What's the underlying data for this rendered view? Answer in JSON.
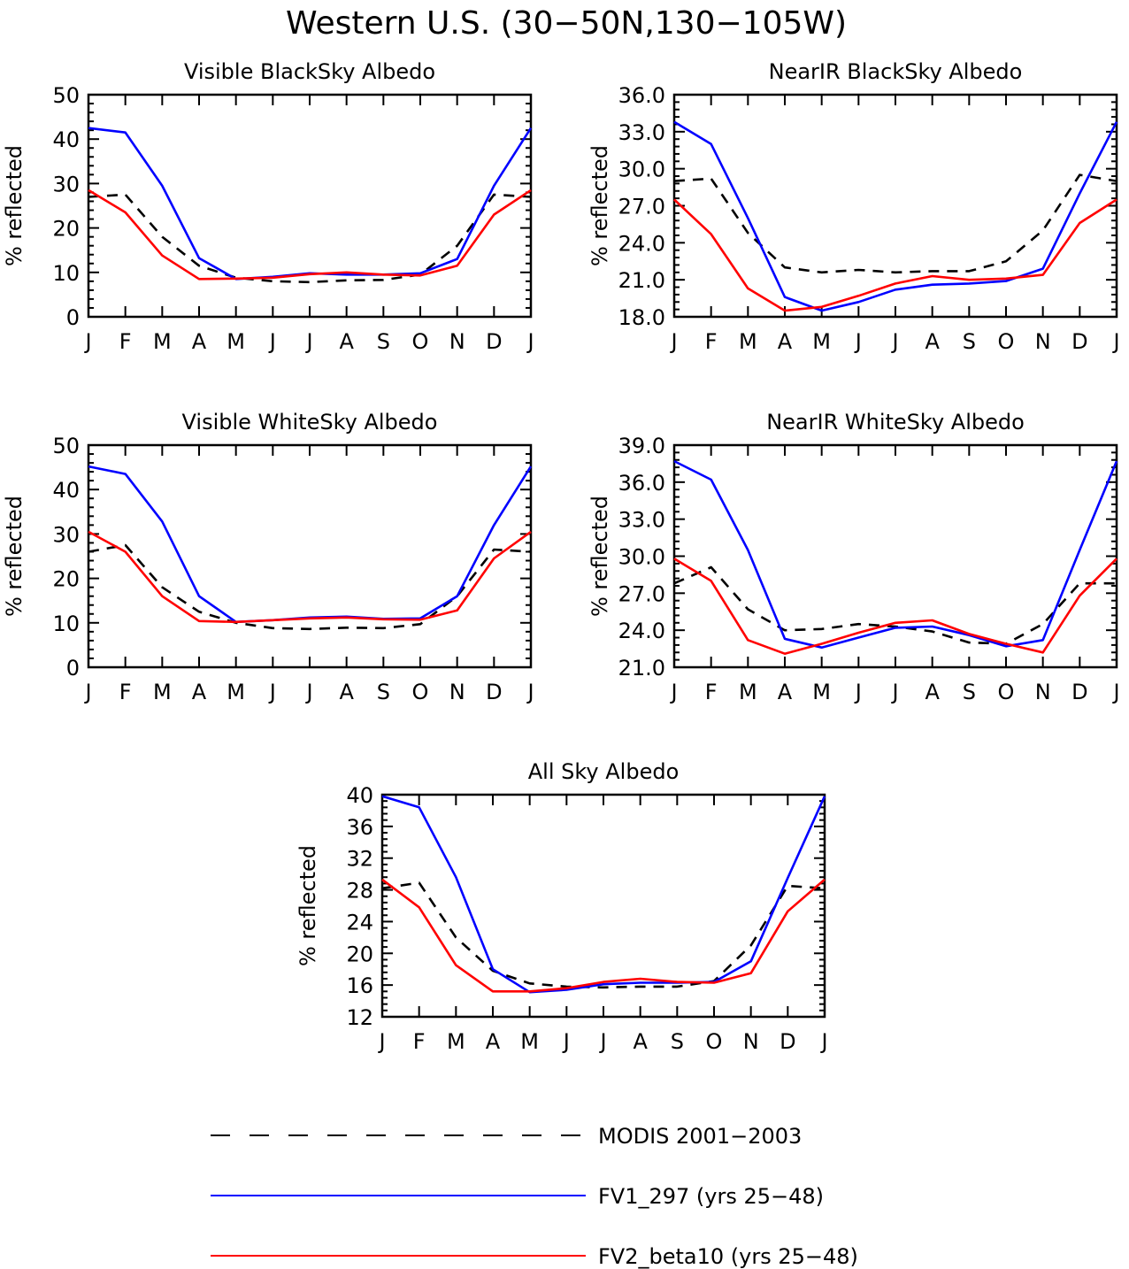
{
  "figure_title": "Western U.S. (30−50N,130−105W)",
  "month_labels": [
    "J",
    "F",
    "M",
    "A",
    "M",
    "J",
    "J",
    "A",
    "S",
    "O",
    "N",
    "D",
    "J"
  ],
  "legend": [
    {
      "label": "MODIS 2001−2003",
      "color": "#000000",
      "dash": true
    },
    {
      "label": "FV1_297 (yrs 25−48)",
      "color": "#0000ff",
      "dash": false
    },
    {
      "label": "FV2_beta10 (yrs 25−48)",
      "color": "#ff0000",
      "dash": false
    }
  ],
  "chart_data": [
    {
      "type": "line",
      "title": "Visible BlackSky Albedo",
      "ylabel": "% reflected",
      "ylim": [
        0,
        50
      ],
      "yticks": [
        "0",
        "10",
        "20",
        "30",
        "40",
        "50"
      ],
      "categories": [
        "J",
        "F",
        "M",
        "A",
        "M",
        "J",
        "J",
        "A",
        "S",
        "O",
        "N",
        "D",
        "J"
      ],
      "series": [
        {
          "name": "MODIS 2001−2003",
          "color": "#000000",
          "dash": true,
          "values": [
            27.0,
            27.5,
            18.0,
            11.5,
            8.8,
            8.0,
            7.8,
            8.2,
            8.3,
            9.5,
            16.0,
            27.5,
            27.0
          ]
        },
        {
          "name": "FV1_297 (yrs 25−48)",
          "color": "#0000ff",
          "dash": false,
          "values": [
            42.5,
            41.5,
            29.5,
            13.2,
            8.5,
            9.0,
            9.8,
            9.5,
            9.5,
            9.8,
            13.0,
            29.5,
            42.5
          ]
        },
        {
          "name": "FV2_beta10 (yrs 25−48)",
          "color": "#ff0000",
          "dash": false,
          "values": [
            28.5,
            23.5,
            13.8,
            8.5,
            8.6,
            8.8,
            9.6,
            10.0,
            9.5,
            9.3,
            11.5,
            23.0,
            28.5
          ]
        }
      ]
    },
    {
      "type": "line",
      "title": "NearIR BlackSky Albedo",
      "ylabel": "% reflected",
      "ylim": [
        18,
        36
      ],
      "yticks": [
        "18.0",
        "21.0",
        "24.0",
        "27.0",
        "30.0",
        "33.0",
        "36.0"
      ],
      "categories": [
        "J",
        "F",
        "M",
        "A",
        "M",
        "J",
        "J",
        "A",
        "S",
        "O",
        "N",
        "D",
        "J"
      ],
      "series": [
        {
          "name": "MODIS 2001−2003",
          "color": "#000000",
          "dash": true,
          "values": [
            29.0,
            29.2,
            24.8,
            22.0,
            21.6,
            21.8,
            21.6,
            21.7,
            21.7,
            22.5,
            25.0,
            29.5,
            29.0
          ]
        },
        {
          "name": "FV1_297 (yrs 25−48)",
          "color": "#0000ff",
          "dash": false,
          "values": [
            33.8,
            32.0,
            26.0,
            19.6,
            18.5,
            19.2,
            20.2,
            20.6,
            20.7,
            20.9,
            21.9,
            28.0,
            33.8
          ]
        },
        {
          "name": "FV2_beta10 (yrs 25−48)",
          "color": "#ff0000",
          "dash": false,
          "values": [
            27.5,
            24.7,
            20.3,
            18.5,
            18.8,
            19.7,
            20.7,
            21.3,
            21.0,
            21.1,
            21.4,
            25.6,
            27.5
          ]
        }
      ]
    },
    {
      "type": "line",
      "title": "Visible WhiteSky Albedo",
      "ylabel": "% reflected",
      "ylim": [
        0,
        50
      ],
      "yticks": [
        "0",
        "10",
        "20",
        "30",
        "40",
        "50"
      ],
      "categories": [
        "J",
        "F",
        "M",
        "A",
        "M",
        "J",
        "J",
        "A",
        "S",
        "O",
        "N",
        "D",
        "J"
      ],
      "series": [
        {
          "name": "MODIS 2001−2003",
          "color": "#000000",
          "dash": true,
          "values": [
            26.0,
            27.5,
            18.0,
            12.5,
            10.0,
            8.8,
            8.6,
            8.9,
            8.8,
            9.7,
            16.0,
            26.5,
            26.0
          ]
        },
        {
          "name": "FV1_297 (yrs 25−48)",
          "color": "#0000ff",
          "dash": false,
          "values": [
            45.2,
            43.5,
            32.8,
            16.0,
            10.2,
            10.6,
            11.2,
            11.4,
            10.9,
            11.0,
            16.0,
            32.0,
            45.2
          ]
        },
        {
          "name": "FV2_beta10 (yrs 25−48)",
          "color": "#ff0000",
          "dash": false,
          "values": [
            30.5,
            26.0,
            16.0,
            10.4,
            10.2,
            10.6,
            11.0,
            11.2,
            10.8,
            10.7,
            12.8,
            24.5,
            30.5
          ]
        }
      ]
    },
    {
      "type": "line",
      "title": "NearIR WhiteSky Albedo",
      "ylabel": "% reflected",
      "ylim": [
        21,
        39
      ],
      "yticks": [
        "21.0",
        "24.0",
        "27.0",
        "30.0",
        "33.0",
        "36.0",
        "39.0"
      ],
      "categories": [
        "J",
        "F",
        "M",
        "A",
        "M",
        "J",
        "J",
        "A",
        "S",
        "O",
        "N",
        "D",
        "J"
      ],
      "series": [
        {
          "name": "MODIS 2001−2003",
          "color": "#000000",
          "dash": true,
          "values": [
            27.8,
            29.1,
            25.7,
            24.0,
            24.1,
            24.5,
            24.3,
            23.9,
            23.0,
            22.9,
            24.5,
            27.8,
            27.8
          ]
        },
        {
          "name": "FV1_297 (yrs 25−48)",
          "color": "#0000ff",
          "dash": false,
          "values": [
            37.7,
            36.2,
            30.5,
            23.3,
            22.6,
            23.4,
            24.2,
            24.3,
            23.6,
            22.7,
            23.2,
            30.5,
            37.7
          ]
        },
        {
          "name": "FV2_beta10 (yrs 25−48)",
          "color": "#ff0000",
          "dash": false,
          "values": [
            29.8,
            28.0,
            23.2,
            22.1,
            22.9,
            23.8,
            24.6,
            24.8,
            23.7,
            22.9,
            22.2,
            26.8,
            29.8
          ]
        }
      ]
    },
    {
      "type": "line",
      "title": "All Sky Albedo",
      "ylabel": "% reflected",
      "ylim": [
        12,
        40
      ],
      "yticks": [
        "12",
        "16",
        "20",
        "24",
        "28",
        "32",
        "36",
        "40"
      ],
      "categories": [
        "J",
        "F",
        "M",
        "A",
        "M",
        "J",
        "J",
        "A",
        "S",
        "O",
        "N",
        "D",
        "J"
      ],
      "series": [
        {
          "name": "MODIS 2001−2003",
          "color": "#000000",
          "dash": true,
          "values": [
            28.2,
            28.9,
            22.0,
            17.8,
            16.2,
            15.8,
            15.7,
            15.8,
            15.8,
            16.5,
            21.0,
            28.5,
            28.2
          ]
        },
        {
          "name": "FV1_297 (yrs 25−48)",
          "color": "#0000ff",
          "dash": false,
          "values": [
            39.8,
            38.4,
            29.6,
            18.0,
            15.1,
            15.4,
            16.1,
            16.3,
            16.3,
            16.4,
            19.0,
            29.5,
            39.8
          ]
        },
        {
          "name": "FV2_beta10 (yrs 25−48)",
          "color": "#ff0000",
          "dash": false,
          "values": [
            29.3,
            25.8,
            18.5,
            15.2,
            15.2,
            15.6,
            16.4,
            16.8,
            16.4,
            16.3,
            17.5,
            25.3,
            29.3
          ]
        }
      ]
    }
  ]
}
